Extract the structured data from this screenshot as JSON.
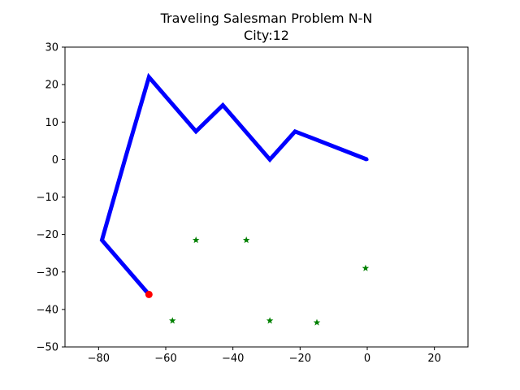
{
  "chart_data": {
    "type": "line",
    "title": "Traveling Salesman Problem N-N",
    "subtitle": "City:12",
    "xlabel": "",
    "ylabel": "",
    "xlim": [
      -90,
      30
    ],
    "ylim": [
      -50,
      30
    ],
    "x_ticks": [
      -80,
      -60,
      -40,
      -20,
      0,
      20
    ],
    "y_ticks": [
      -50,
      -40,
      -30,
      -20,
      -10,
      0,
      10,
      20,
      30
    ],
    "grid": false,
    "series": [
      {
        "kind": "path",
        "color": "#0000ff",
        "x": [
          0,
          -21.5,
          -29,
          -43,
          -51,
          -65,
          -72,
          -79,
          -65
        ],
        "y": [
          0,
          7.5,
          0,
          14.5,
          7.5,
          22,
          0.5,
          -21.5,
          -36
        ]
      },
      {
        "kind": "current",
        "color": "#ff0000",
        "x": [
          -65
        ],
        "y": [
          -36
        ]
      },
      {
        "kind": "unvisited",
        "color": "#008000",
        "marker": "star",
        "x": [
          -51,
          -36,
          -0.5,
          -58,
          -29,
          -15
        ],
        "y": [
          -21.5,
          -21.5,
          -29,
          -43,
          -43,
          -43.5
        ]
      }
    ]
  }
}
